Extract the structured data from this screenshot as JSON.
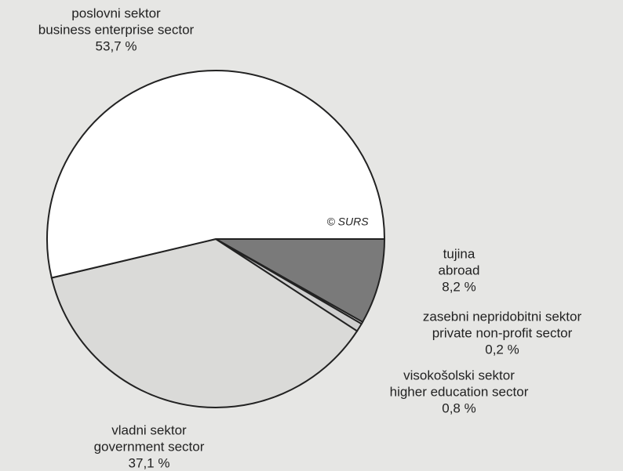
{
  "chart_data": {
    "type": "pie",
    "categories": [
      "tujina",
      "zasebni nepridobitni sektor",
      "visokošolski sektor",
      "vladni sektor",
      "poslovni sektor"
    ],
    "categories_en": [
      "abroad",
      "private non-profit sector",
      "higher education sector",
      "government sector",
      "business enterprise sector"
    ],
    "values": [
      8.2,
      0.2,
      0.8,
      37.1,
      53.7
    ],
    "value_labels": [
      "8,2 %",
      "0,2 %",
      "0,8 %",
      "37,1 %",
      "53,7 %"
    ],
    "colors": [
      "#7a7a7a",
      "#ffffff",
      "#cfcfcf",
      "#dadad8",
      "#ffffff"
    ],
    "annotation": "© SURS"
  }
}
